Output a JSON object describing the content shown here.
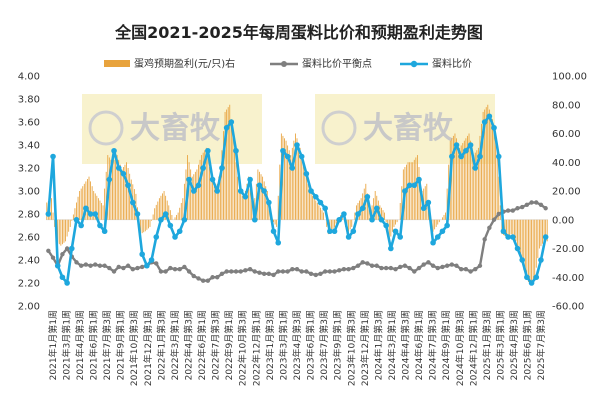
{
  "chart_data": {
    "type": "bar+line",
    "title": "全国2021-2025年每周蛋料比价和预期盈利走势图",
    "left_axis": {
      "ylim": [
        2.0,
        4.0
      ],
      "ticks": [
        "2.00",
        "2.20",
        "2.40",
        "2.60",
        "2.80",
        "3.00",
        "3.20",
        "3.40",
        "3.60",
        "3.80",
        "4.00"
      ]
    },
    "right_axis": {
      "ylim": [
        -60,
        100
      ],
      "ticks": [
        "-60.00",
        "-40.00",
        "-20.00",
        "0.00",
        "20.00",
        "40.00",
        "60.00",
        "80.00",
        "100.00"
      ]
    },
    "x_labels": [
      "2021年1月第1周",
      "2021年3月第1周",
      "2021年4月第3周",
      "2021年6月第1周",
      "2021年7月第3周",
      "2021年9月第1周",
      "2021年10月第3周",
      "2021年12月第1周",
      "2022年1月第3周",
      "2022年3月第1周",
      "2022年4月第3周",
      "2022年6月第1周",
      "2022年7月第3周",
      "2022年9月第1周",
      "2022年10月第3周",
      "2022年12月第1周",
      "2023年1月第3周",
      "2023年3月第1周",
      "2023年4月第3周",
      "2023年6月第1周",
      "2023年7月第3周",
      "2023年9月第1周",
      "2023年10月第3周",
      "2023年12月第1周",
      "2024年1月第3周",
      "2024年3月第1周",
      "2024年4月第3周",
      "2024年6月第1周",
      "2024年7月第3周",
      "2024年9月第1周",
      "2024年10月第3周",
      "2024年12月第1周",
      "2025年1月第3周",
      "2025年3月第1周",
      "2025年4月第3周",
      "2025年6月第1周",
      "2025年7月第3周"
    ],
    "series": [
      {
        "name": "蛋鸡预期盈利(元/只)右",
        "type": "bar",
        "axis": "right",
        "color": "#e8a33d",
        "values": [
          12,
          15,
          -15,
          -18,
          -15,
          -5,
          8,
          20,
          25,
          30,
          20,
          15,
          10,
          45,
          40,
          45,
          35,
          40,
          28,
          18,
          -10,
          -8,
          -5,
          8,
          15,
          20,
          10,
          0,
          5,
          15,
          45,
          30,
          35,
          45,
          50,
          30,
          20,
          35,
          75,
          80,
          50,
          20,
          15,
          30,
          5,
          35,
          30,
          20,
          0,
          -5,
          60,
          55,
          45,
          60,
          50,
          35,
          20,
          15,
          10,
          5,
          -10,
          -8,
          0,
          5,
          -10,
          -5,
          10,
          15,
          25,
          5,
          20,
          10,
          5,
          -15,
          -5,
          0,
          35,
          40,
          40,
          45,
          20,
          25,
          -10,
          -5,
          0,
          5,
          55,
          60,
          50,
          55,
          60,
          45,
          50,
          75,
          80,
          70,
          50,
          -10,
          -12,
          -10,
          -15,
          -25,
          -40,
          -45,
          -40,
          -20,
          -15
        ]
      },
      {
        "name": "蛋料比价平衡点",
        "type": "line",
        "axis": "left",
        "color": "#7f7f7f",
        "values": [
          2.48,
          2.42,
          2.35,
          2.45,
          2.5,
          2.43,
          2.38,
          2.35,
          2.36,
          2.35,
          2.36,
          2.35,
          2.35,
          2.33,
          2.3,
          2.34,
          2.33,
          2.35,
          2.32,
          2.33,
          2.34,
          2.35,
          2.38,
          2.37,
          2.3,
          2.3,
          2.33,
          2.32,
          2.32,
          2.34,
          2.3,
          2.26,
          2.24,
          2.22,
          2.22,
          2.25,
          2.25,
          2.28,
          2.3,
          2.3,
          2.3,
          2.3,
          2.31,
          2.32,
          2.3,
          2.29,
          2.28,
          2.28,
          2.27,
          2.3,
          2.3,
          2.3,
          2.32,
          2.32,
          2.3,
          2.3,
          2.28,
          2.27,
          2.28,
          2.3,
          2.3,
          2.3,
          2.31,
          2.32,
          2.32,
          2.33,
          2.35,
          2.38,
          2.37,
          2.35,
          2.35,
          2.33,
          2.33,
          2.33,
          2.32,
          2.34,
          2.35,
          2.33,
          2.3,
          2.33,
          2.36,
          2.38,
          2.35,
          2.33,
          2.34,
          2.35,
          2.36,
          2.35,
          2.32,
          2.32,
          2.3,
          2.32,
          2.35,
          2.58,
          2.68,
          2.75,
          2.8,
          2.82,
          2.83,
          2.83,
          2.85,
          2.86,
          2.88,
          2.9,
          2.9,
          2.88,
          2.85
        ]
      },
      {
        "name": "蛋料比价",
        "type": "line",
        "axis": "left",
        "color": "#1ea7dd",
        "values": [
          2.8,
          3.3,
          2.35,
          2.25,
          2.2,
          2.5,
          2.75,
          2.7,
          2.85,
          2.8,
          2.8,
          2.7,
          2.65,
          3.1,
          3.35,
          3.2,
          3.15,
          3.05,
          2.9,
          2.8,
          2.45,
          2.35,
          2.4,
          2.6,
          2.75,
          2.8,
          2.7,
          2.6,
          2.65,
          2.75,
          3.1,
          3.0,
          3.05,
          3.2,
          3.35,
          3.1,
          3.0,
          3.2,
          3.55,
          3.6,
          3.35,
          3.0,
          2.95,
          3.1,
          2.75,
          3.05,
          3.0,
          2.9,
          2.65,
          2.55,
          3.35,
          3.3,
          3.2,
          3.4,
          3.3,
          3.15,
          3.0,
          2.95,
          2.9,
          2.85,
          2.65,
          2.65,
          2.75,
          2.8,
          2.6,
          2.65,
          2.8,
          2.85,
          2.95,
          2.75,
          2.85,
          2.75,
          2.7,
          2.5,
          2.65,
          2.6,
          3.0,
          3.05,
          3.05,
          3.1,
          2.85,
          2.9,
          2.55,
          2.6,
          2.65,
          2.7,
          3.3,
          3.4,
          3.3,
          3.35,
          3.4,
          3.2,
          3.3,
          3.6,
          3.65,
          3.55,
          3.3,
          2.65,
          2.6,
          2.6,
          2.5,
          2.4,
          2.25,
          2.2,
          2.25,
          2.4,
          2.6
        ]
      }
    ],
    "legend_position": "top",
    "watermark": "大畜牧"
  }
}
